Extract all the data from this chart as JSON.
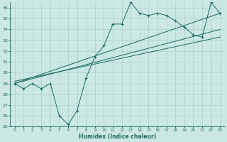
{
  "xlabel": "Humidex (Indice chaleur)",
  "bg_color": "#cce8e4",
  "grid_color": "#a8d0cc",
  "line_color": "#1a6b60",
  "xlim": [
    -0.5,
    23.5
  ],
  "ylim": [
    25,
    36.5
  ],
  "yticks": [
    25,
    26,
    27,
    28,
    29,
    30,
    31,
    32,
    33,
    34,
    35,
    36
  ],
  "xticks": [
    0,
    1,
    2,
    3,
    4,
    5,
    6,
    7,
    8,
    9,
    10,
    11,
    12,
    13,
    14,
    15,
    16,
    17,
    18,
    19,
    20,
    21,
    22,
    23
  ],
  "main_series": {
    "x": [
      0,
      1,
      2,
      3,
      4,
      5,
      6,
      7,
      8,
      9,
      10,
      11,
      12,
      13,
      14,
      15,
      16,
      17,
      18,
      19,
      20,
      21,
      22,
      23
    ],
    "y": [
      29,
      28.5,
      29,
      28.5,
      29,
      26,
      25.2,
      26.5,
      29.5,
      31.5,
      32.5,
      34.5,
      34.5,
      36.5,
      35.5,
      35.3,
      35.5,
      35.3,
      34.8,
      34.2,
      33.5,
      33.3,
      36.5,
      35.5
    ]
  },
  "trend1": {
    "x": [
      0,
      23
    ],
    "y": [
      29.0,
      35.5
    ]
  },
  "trend2": {
    "x": [
      0,
      23
    ],
    "y": [
      29.0,
      34.0
    ]
  },
  "trend3": {
    "x": [
      0,
      23
    ],
    "y": [
      29.2,
      33.3
    ]
  }
}
